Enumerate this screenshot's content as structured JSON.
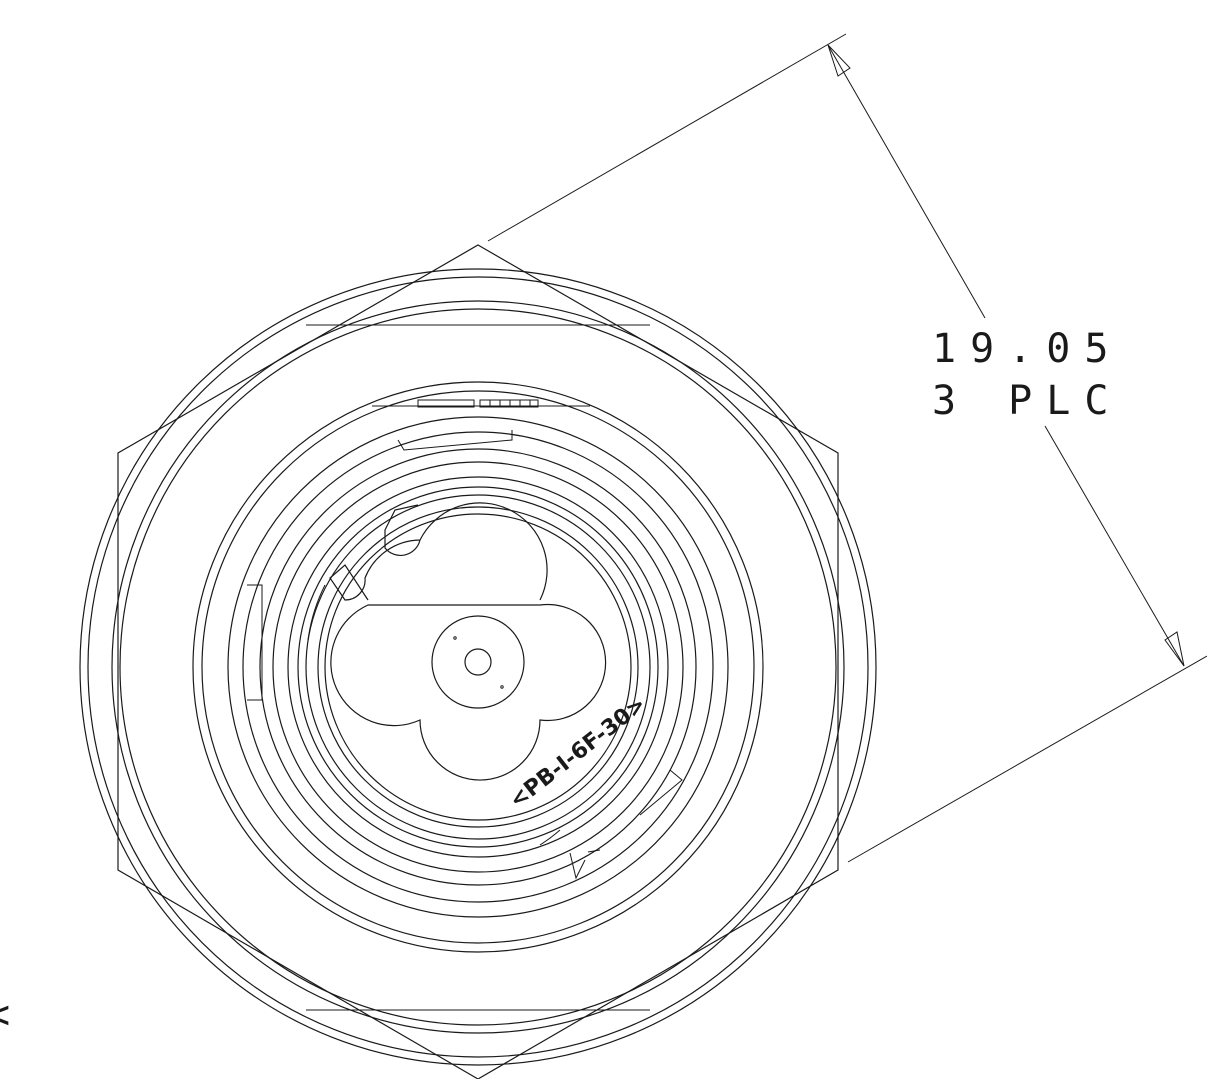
{
  "dimension": {
    "value": "19.05",
    "note": "3 PLC"
  },
  "part_marking": "<PB-I-6F-30>",
  "edge_fragment": "<"
}
